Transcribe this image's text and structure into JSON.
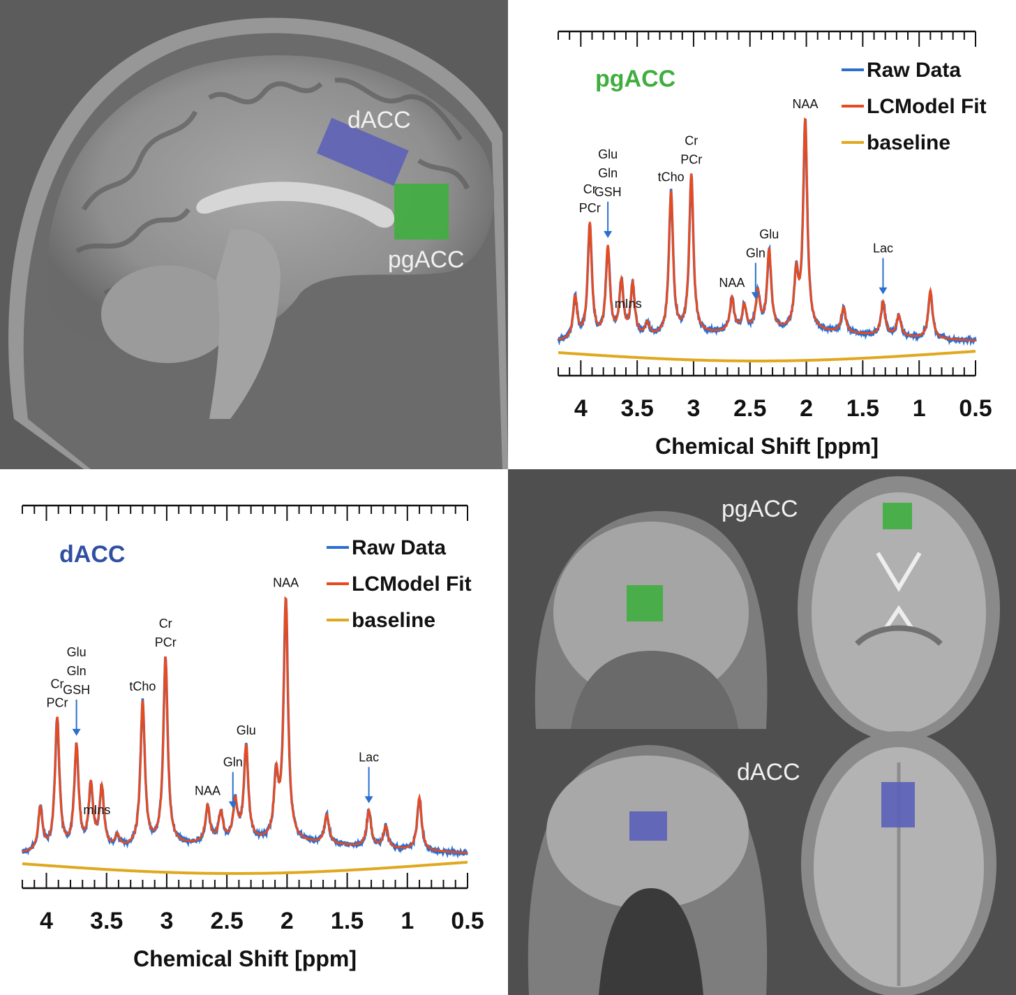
{
  "mri": {
    "sagittal_labels": {
      "dacc": "dACC",
      "pgacc": "pgACC"
    },
    "grid_labels": {
      "pgacc": "pgACC",
      "dacc": "dACC"
    },
    "roi_colors": {
      "dacc": "#5b5fb8",
      "pgacc": "#3fae3f"
    }
  },
  "legend": {
    "raw": "Raw Data",
    "fit": "LCModel Fit",
    "baseline": "baseline"
  },
  "colors": {
    "raw": "#2a6fcf",
    "fit": "#e84a1e",
    "baseline": "#e0a81e",
    "pgacc_title": "#3fae3f",
    "dacc_title": "#2f4fa2"
  },
  "chart_data": [
    {
      "type": "line",
      "title": "pgACC",
      "xlabel": "Chemical Shift [ppm]",
      "ylabel": "",
      "xlim": [
        4.2,
        0.5
      ],
      "x_reversed": true,
      "xticks": [
        "4",
        "3.5",
        "3",
        "2.5",
        "2",
        "1.5",
        "1",
        "0.5"
      ],
      "grid": false,
      "legend_position": "top-right",
      "series": [
        {
          "name": "Raw Data",
          "values_ref": "spectrum"
        },
        {
          "name": "LCModel Fit",
          "values_ref": "spectrum"
        },
        {
          "name": "baseline",
          "values_ref": "baseline"
        }
      ],
      "peaks": [
        {
          "ppm": 4.05,
          "height": 0.2
        },
        {
          "ppm": 3.92,
          "height": 0.55
        },
        {
          "ppm": 3.76,
          "height": 0.43
        },
        {
          "ppm": 3.64,
          "height": 0.26
        },
        {
          "ppm": 3.54,
          "height": 0.25
        },
        {
          "ppm": 3.41,
          "height": 0.06
        },
        {
          "ppm": 3.2,
          "height": 0.68
        },
        {
          "ppm": 3.02,
          "height": 0.76
        },
        {
          "ppm": 2.66,
          "height": 0.16
        },
        {
          "ppm": 2.55,
          "height": 0.12
        },
        {
          "ppm": 2.43,
          "height": 0.18
        },
        {
          "ppm": 2.33,
          "height": 0.38
        },
        {
          "ppm": 2.09,
          "height": 0.25
        },
        {
          "ppm": 2.01,
          "height": 1.0
        },
        {
          "ppm": 1.67,
          "height": 0.12
        },
        {
          "ppm": 1.32,
          "height": 0.16
        },
        {
          "ppm": 1.18,
          "height": 0.1
        },
        {
          "ppm": 0.9,
          "height": 0.23
        }
      ],
      "annotations": [
        {
          "text": [
            "Cr",
            "PCr"
          ],
          "ppm": 3.92,
          "arrow": false
        },
        {
          "text": [
            "Glu",
            "Gln",
            "GSH"
          ],
          "ppm": 3.76,
          "arrow": true
        },
        {
          "text": [
            "mIns"
          ],
          "ppm": 3.58,
          "arrow": false
        },
        {
          "text": [
            "tCho"
          ],
          "ppm": 3.2,
          "arrow": false
        },
        {
          "text": [
            "Cr",
            "PCr"
          ],
          "ppm": 3.02,
          "arrow": false
        },
        {
          "text": [
            "NAA"
          ],
          "ppm": 2.66,
          "arrow": false
        },
        {
          "text": [
            "Gln"
          ],
          "ppm": 2.45,
          "arrow": true
        },
        {
          "text": [
            "Glu"
          ],
          "ppm": 2.33,
          "arrow": false
        },
        {
          "text": [
            "NAA"
          ],
          "ppm": 2.01,
          "arrow": false
        },
        {
          "text": [
            "Lac"
          ],
          "ppm": 1.32,
          "arrow": true
        }
      ]
    },
    {
      "type": "line",
      "title": "dACC",
      "xlabel": "Chemical Shift [ppm]",
      "ylabel": "",
      "xlim": [
        4.2,
        0.5
      ],
      "x_reversed": true,
      "xticks": [
        "4",
        "3.5",
        "3",
        "2.5",
        "2",
        "1.5",
        "1",
        "0.5"
      ],
      "grid": false,
      "legend_position": "top-right",
      "series": [
        {
          "name": "Raw Data",
          "values_ref": "spectrum"
        },
        {
          "name": "LCModel Fit",
          "values_ref": "spectrum"
        },
        {
          "name": "baseline",
          "values_ref": "baseline"
        }
      ],
      "peaks": [
        {
          "ppm": 4.05,
          "height": 0.18
        },
        {
          "ppm": 3.91,
          "height": 0.55
        },
        {
          "ppm": 3.75,
          "height": 0.43
        },
        {
          "ppm": 3.63,
          "height": 0.26
        },
        {
          "ppm": 3.54,
          "height": 0.25
        },
        {
          "ppm": 3.41,
          "height": 0.05
        },
        {
          "ppm": 3.2,
          "height": 0.6
        },
        {
          "ppm": 3.01,
          "height": 0.78
        },
        {
          "ppm": 2.66,
          "height": 0.15
        },
        {
          "ppm": 2.55,
          "height": 0.12
        },
        {
          "ppm": 2.43,
          "height": 0.16
        },
        {
          "ppm": 2.34,
          "height": 0.39
        },
        {
          "ppm": 2.09,
          "height": 0.25
        },
        {
          "ppm": 2.01,
          "height": 1.0
        },
        {
          "ppm": 1.67,
          "height": 0.12
        },
        {
          "ppm": 1.32,
          "height": 0.15
        },
        {
          "ppm": 1.18,
          "height": 0.09
        },
        {
          "ppm": 0.9,
          "height": 0.22
        }
      ],
      "annotations": [
        {
          "text": [
            "Cr",
            "PCr"
          ],
          "ppm": 3.91,
          "arrow": false
        },
        {
          "text": [
            "Glu",
            "Gln",
            "GSH"
          ],
          "ppm": 3.75,
          "arrow": true
        },
        {
          "text": [
            "mIns"
          ],
          "ppm": 3.58,
          "arrow": false
        },
        {
          "text": [
            "tCho"
          ],
          "ppm": 3.2,
          "arrow": false
        },
        {
          "text": [
            "Cr",
            "PCr"
          ],
          "ppm": 3.01,
          "arrow": false
        },
        {
          "text": [
            "NAA"
          ],
          "ppm": 2.66,
          "arrow": false
        },
        {
          "text": [
            "Gln"
          ],
          "ppm": 2.45,
          "arrow": true
        },
        {
          "text": [
            "Glu"
          ],
          "ppm": 2.34,
          "arrow": false
        },
        {
          "text": [
            "NAA"
          ],
          "ppm": 2.01,
          "arrow": false
        },
        {
          "text": [
            "Lac"
          ],
          "ppm": 1.32,
          "arrow": true
        }
      ]
    }
  ]
}
